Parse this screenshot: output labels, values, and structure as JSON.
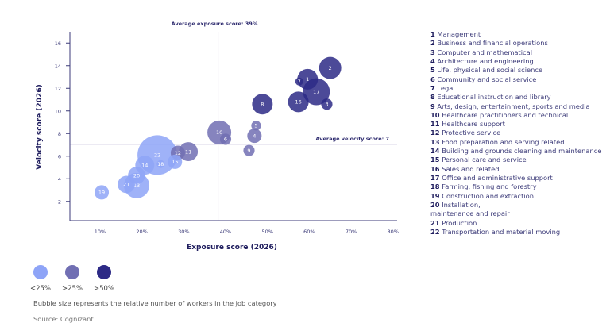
{
  "chart_data": {
    "type": "scatter",
    "subtype": "bubble",
    "xlabel": "Exposure score (2026)",
    "ylabel": "Velocity score (2026)",
    "xlim": [
      2.8,
      81
    ],
    "ylim": [
      0.3,
      17
    ],
    "x_ticks": [
      "10%",
      "20%",
      "30%",
      "40%",
      "50%",
      "60%",
      "70%",
      "80%"
    ],
    "x_tick_values": [
      10,
      20,
      30,
      40,
      50,
      60,
      70,
      80
    ],
    "y_ticks": [
      "2",
      "4",
      "6",
      "8",
      "10",
      "12",
      "14",
      "16"
    ],
    "y_tick_values": [
      2,
      4,
      6,
      8,
      10,
      12,
      14,
      16
    ],
    "avg_exposure": {
      "value": 39,
      "label": "Average exposure score: 39%"
    },
    "avg_velocity": {
      "value": 7,
      "label": "Average velocity score: 7"
    },
    "colors": {
      "low": "#8ea4f7",
      "mid": "#716fb3",
      "high": "#2d2a86"
    },
    "color_legend": [
      {
        "key": "low",
        "label": "<25%"
      },
      {
        "key": "mid",
        "label": ">25%"
      },
      {
        "key": "high",
        "label": ">50%"
      }
    ],
    "size_note": "Bubble size represents the relative number of workers in the job category",
    "source": "Source: Cognizant",
    "points": [
      {
        "id": "1",
        "name": "Management",
        "x": 59.6,
        "y": 12.8,
        "size": 27,
        "group": "high"
      },
      {
        "id": "2",
        "name": "Business and financial operations",
        "x": 65.0,
        "y": 13.8,
        "size": 31,
        "group": "high"
      },
      {
        "id": "3",
        "name": "Computer and mathematical",
        "x": 64.2,
        "y": 10.6,
        "size": 8,
        "group": "high"
      },
      {
        "id": "4",
        "name": "Architecture and engineering",
        "x": 46.9,
        "y": 7.8,
        "size": 13,
        "group": "mid"
      },
      {
        "id": "5",
        "name": "Life, physical and social science",
        "x": 47.3,
        "y": 8.7,
        "size": 6,
        "group": "mid"
      },
      {
        "id": "6",
        "name": "Community and social service",
        "x": 40.0,
        "y": 7.5,
        "size": 8,
        "group": "mid"
      },
      {
        "id": "7",
        "name": "Legal",
        "x": 57.6,
        "y": 12.6,
        "size": 4,
        "group": "high"
      },
      {
        "id": "8",
        "name": "Educational instruction and library",
        "x": 48.8,
        "y": 10.6,
        "size": 27,
        "group": "high"
      },
      {
        "id": "9",
        "name": "Arts, design, entertainment, sports and media",
        "x": 45.6,
        "y": 6.5,
        "size": 8,
        "group": "mid"
      },
      {
        "id": "10",
        "name": "Healthcare practitioners and technical",
        "x": 38.5,
        "y": 8.1,
        "size": 36,
        "group": "mid"
      },
      {
        "id": "11",
        "name": "Healthcare support",
        "x": 31.1,
        "y": 6.4,
        "size": 23,
        "group": "mid"
      },
      {
        "id": "12",
        "name": "Protective service",
        "x": 28.6,
        "y": 6.3,
        "size": 13,
        "group": "mid"
      },
      {
        "id": "13",
        "name": "Food preparation and serving related",
        "x": 18.75,
        "y": 3.4,
        "size": 41,
        "group": "low"
      },
      {
        "id": "14",
        "name": "Building and grounds cleaning and maintenance",
        "x": 20.7,
        "y": 5.2,
        "size": 23,
        "group": "low"
      },
      {
        "id": "15",
        "name": "Personal care and service",
        "x": 27.9,
        "y": 5.5,
        "size": 13,
        "group": "low"
      },
      {
        "id": "16",
        "name": "Sales and related",
        "x": 57.4,
        "y": 10.8,
        "size": 27,
        "group": "high"
      },
      {
        "id": "17",
        "name": "Office and administrative support",
        "x": 61.7,
        "y": 11.7,
        "size": 46,
        "group": "high"
      },
      {
        "id": "18",
        "name": "Farming, fishing and forestry",
        "x": 24.5,
        "y": 5.3,
        "size": 4,
        "group": "low"
      },
      {
        "id": "19",
        "name": "Construction and extraction",
        "x": 10.4,
        "y": 2.8,
        "size": 13,
        "group": "low"
      },
      {
        "id": "20",
        "name": "Installation, maintenance and repair",
        "x": 18.75,
        "y": 4.3,
        "size": 19,
        "group": "low"
      },
      {
        "id": "21",
        "name": "Production",
        "x": 16.3,
        "y": 3.5,
        "size": 19,
        "group": "low"
      },
      {
        "id": "22",
        "name": "Transportation and material moving",
        "x": 23.7,
        "y": 6.1,
        "size": 100,
        "group": "low"
      }
    ]
  }
}
